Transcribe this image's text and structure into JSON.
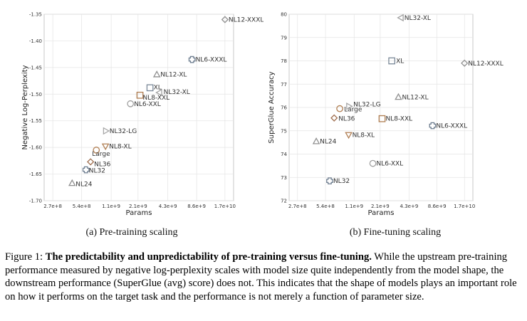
{
  "chart_data": [
    {
      "type": "scatter",
      "caption": "(a) Pre-training scaling",
      "xlabel": "Params",
      "ylabel": "Negative Log-Perplexity",
      "xticks": [
        "2.7e+8",
        "5.4e+8",
        "1.1e+9",
        "2.1e+9",
        "4.3e+9",
        "8.6e+9",
        "1.7e+10"
      ],
      "yticks": [
        "-1.35",
        "-1.40",
        "-1.45",
        "-1.50",
        "-1.55",
        "-1.60",
        "-1.65",
        "-1.70"
      ],
      "ylim": [
        -1.7,
        -1.35
      ],
      "grid": true,
      "points": [
        {
          "label": "NL12-XXXL",
          "x": 17000000000.0,
          "y": -1.36,
          "marker": "diamond",
          "color": "#909090"
        },
        {
          "label": "NL6-XXXL",
          "x": 7700000000.0,
          "y": -1.435,
          "marker": "plus",
          "color": "#6e7e90"
        },
        {
          "label": "NL12-XL",
          "x": 3300000000.0,
          "y": -1.463,
          "marker": "triangle-up",
          "color": "#909090"
        },
        {
          "label": "XL",
          "x": 2800000000.0,
          "y": -1.488,
          "marker": "square",
          "color": "#7a8898"
        },
        {
          "label": "NL32-XL",
          "x": 3500000000.0,
          "y": -1.497,
          "marker": "triangle-left",
          "color": "#a0a0a0"
        },
        {
          "label": "NL8-XXL",
          "x": 2200000000.0,
          "y": -1.502,
          "marker": "square",
          "color": "#b07e52"
        },
        {
          "label": "NL6-XXL",
          "x": 1750000000.0,
          "y": -1.518,
          "marker": "circle",
          "color": "#a0a0a0"
        },
        {
          "label": "NL32-LG",
          "x": 970000000.0,
          "y": -1.569,
          "marker": "triangle-right",
          "color": "#a8a8a8"
        },
        {
          "label": "NL8-XL",
          "x": 960000000.0,
          "y": -1.598,
          "marker": "triangle-down",
          "color": "#b07e52"
        },
        {
          "label": "Large",
          "x": 770000000.0,
          "y": -1.605,
          "marker": "circle",
          "color": "#b07e52"
        },
        {
          "label": "NL36",
          "x": 670000000.0,
          "y": -1.627,
          "marker": "diamond",
          "color": "#a07050"
        },
        {
          "label": "NL32",
          "x": 600000000.0,
          "y": -1.642,
          "marker": "plus",
          "color": "#6e7e90"
        },
        {
          "label": "NL24",
          "x": 430000000.0,
          "y": -1.667,
          "marker": "triangle-up",
          "color": "#909090"
        }
      ]
    },
    {
      "type": "scatter",
      "caption": "(b) Fine-tuning scaling",
      "xlabel": "Params",
      "ylabel": "SuperGlue Accuracy",
      "xticks": [
        "2.7e+8",
        "5.4e+8",
        "1.1e+9",
        "2.1e+9",
        "4.3e+9",
        "8.6e+9",
        "1.7e+10"
      ],
      "yticks": [
        "80",
        "79",
        "78",
        "77",
        "76",
        "75",
        "74",
        "73",
        "72"
      ],
      "ylim": [
        72,
        80
      ],
      "grid": true,
      "points": [
        {
          "label": "NL32-XL",
          "x": 3500000000.0,
          "y": 79.85,
          "marker": "triangle-left",
          "color": "#a0a0a0"
        },
        {
          "label": "XL",
          "x": 2800000000.0,
          "y": 78.0,
          "marker": "square",
          "color": "#7a8898"
        },
        {
          "label": "NL12-XXXL",
          "x": 17000000000.0,
          "y": 77.9,
          "marker": "diamond",
          "color": "#909090"
        },
        {
          "label": "NL12-XL",
          "x": 3300000000.0,
          "y": 76.45,
          "marker": "triangle-up",
          "color": "#909090"
        },
        {
          "label": "NL32-LG",
          "x": 970000000.0,
          "y": 76.05,
          "marker": "triangle-right",
          "color": "#a8a8a8"
        },
        {
          "label": "Large",
          "x": 770000000.0,
          "y": 75.95,
          "marker": "circle",
          "color": "#b07e52"
        },
        {
          "label": "NL36",
          "x": 670000000.0,
          "y": 75.55,
          "marker": "diamond",
          "color": "#a07050"
        },
        {
          "label": "NL8-XXL",
          "x": 2200000000.0,
          "y": 75.52,
          "marker": "square",
          "color": "#b07e52"
        },
        {
          "label": "NL6-XXXL",
          "x": 7700000000.0,
          "y": 75.22,
          "marker": "plus",
          "color": "#6e7e90"
        },
        {
          "label": "NL8-XL",
          "x": 960000000.0,
          "y": 74.82,
          "marker": "triangle-down",
          "color": "#b07e52"
        },
        {
          "label": "NL24",
          "x": 430000000.0,
          "y": 74.55,
          "marker": "triangle-up",
          "color": "#909090"
        },
        {
          "label": "NL6-XXL",
          "x": 1750000000.0,
          "y": 73.6,
          "marker": "circle",
          "color": "#a0a0a0"
        },
        {
          "label": "NL32",
          "x": 600000000.0,
          "y": 72.85,
          "marker": "plus",
          "color": "#6e7e90"
        }
      ]
    }
  ],
  "figure_caption": {
    "prefix": "Figure 1: ",
    "bold": "The predictability and unpredictability of pre-training versus fine-tuning.",
    "rest": " While the upstream pre-training performance measured by negative log-perplexity scales with model size quite independently from the model shape, the downstream performance (SuperGlue (avg) score) does not. This indicates that the shape of models plays an important role on how it performs on the target task and the performance is not merely a function of parameter size."
  }
}
